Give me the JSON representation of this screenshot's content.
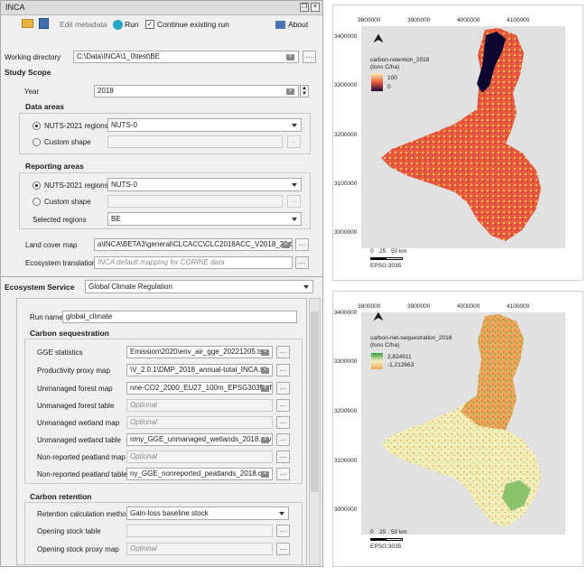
{
  "window": {
    "title": "INCA"
  },
  "toolbar": {
    "edit_metadata": "Edit metadata",
    "run": "Run",
    "continue_label": "Continue existing run",
    "about": "About"
  },
  "workdir": {
    "label": "Working directory",
    "value": "C:\\Data\\INCA\\1_0\\test\\BE"
  },
  "study": {
    "title": "Study Scope",
    "year_label": "Year",
    "year": "2018",
    "data_areas": {
      "title": "Data areas",
      "nuts_label": "NUTS-2021 regions",
      "nuts_value": "NUTS-0",
      "custom_label": "Custom shape"
    },
    "reporting": {
      "title": "Reporting areas",
      "nuts_label": "NUTS-2021 regions",
      "nuts_value": "NUTS-0",
      "custom_label": "Custom shape",
      "selected_label": "Selected regions",
      "selected_value": "BE"
    },
    "land_cover": {
      "label": "Land cover map",
      "value": "a\\INCA\\BETA3\\general\\CLCACC\\CLC2018ACC_V2018_20.tif"
    },
    "eco_trans": {
      "label": "Ecosystem translation",
      "placeholder": "INCA default mapping for CORINE data"
    }
  },
  "service": {
    "label": "Ecosystem Service",
    "value": "Global Climate Regulation"
  },
  "run": {
    "label": "Run name",
    "value": "global_climate"
  },
  "seq": {
    "title": "Carbon sequestration",
    "rows": [
      {
        "label": "GGE statistics",
        "value": "Emission\\2020\\env_air_gge_20221205.tsv"
      },
      {
        "label": "Productivity proxy map",
        "value": "\\V_2.0.1\\DMP_2018_annual-total_INCA.tif"
      },
      {
        "label": "Unmanaged forest map",
        "value": "nne-CO2_2000_EU27_100m_EPSG3035.tif"
      },
      {
        "label": "Unmanaged forest table",
        "placeholder": "Optional"
      },
      {
        "label": "Unmanaged wetland map",
        "placeholder": "Optional"
      },
      {
        "label": "Unmanaged wetland table",
        "value": "nmy_GGE_unmanaged_wetlands_2018.csv"
      },
      {
        "label": "Non-reported peatland map",
        "placeholder": "Optional"
      },
      {
        "label": "Non-reported peatland table",
        "value": "ny_GGE_nonreported_peatlands_2018.csv"
      }
    ]
  },
  "ret": {
    "title": "Carbon retention",
    "method_label": "Retention calculation method",
    "method_value": "Gain-loss baseline stock",
    "stock_label": "Opening stock table",
    "proxy_label": "Opening stock proxy map",
    "proxy_placeholder": "Optional"
  },
  "map1": {
    "xticks": [
      "3800000",
      "3900000",
      "4000000",
      "4100000"
    ],
    "yticks": [
      "3400000",
      "3300000",
      "3200000",
      "3100000",
      "3000000"
    ],
    "legend_title": "carbon-retention_2018",
    "legend_unit": "(tons C/ha)",
    "legend_max": "100",
    "legend_min": "0",
    "scale": [
      "0",
      "25",
      "50 km"
    ],
    "crs": "EPSG:3035"
  },
  "map2": {
    "xticks": [
      "3800000",
      "3900000",
      "4000000",
      "4100000"
    ],
    "yticks": [
      "3400000",
      "3300000",
      "3200000",
      "3100000",
      "3000000"
    ],
    "legend_title": "carbon-net-sequestration_2018",
    "legend_unit": "(tons C/ha)",
    "legend_max": "2,824911",
    "legend_min": "-1,212663",
    "scale": [
      "0",
      "25",
      "50 km"
    ],
    "crs": "EPSG:3035"
  },
  "colors": {
    "retention_low": "#f3d55e",
    "retention_mid": "#e8553a",
    "retention_high": "#0c0530",
    "seq_low": "#f5f0bf",
    "seq_mid": "#eaa85a",
    "seq_high": "#3a9a45"
  }
}
